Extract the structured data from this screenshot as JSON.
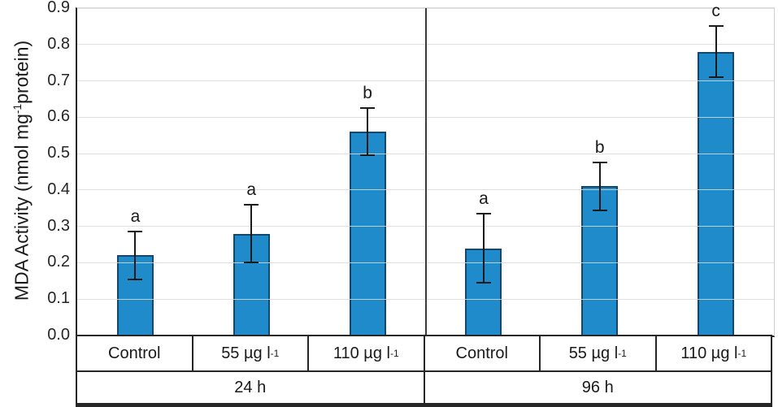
{
  "chart_data": {
    "type": "bar",
    "title": "",
    "y_axis": {
      "label_pre": "MDA Activity (nmol mg",
      "label_sup": "-1",
      "label_post": "protein)",
      "min": 0.0,
      "max": 0.9,
      "step": 0.1,
      "tick_labels": [
        "0.0",
        "0.1",
        "0.2",
        "0.3",
        "0.4",
        "0.5",
        "0.6",
        "0.7",
        "0.8",
        "0.9"
      ]
    },
    "grid": true,
    "legend": null,
    "groups": [
      {
        "label": "24 h",
        "bars": [
          {
            "category": "Control",
            "category_sup": "",
            "value": 0.22,
            "error": 0.065,
            "sig_letter": "a"
          },
          {
            "category": "55 µg l",
            "category_sup": "-1",
            "value": 0.28,
            "error": 0.08,
            "sig_letter": "a"
          },
          {
            "category": "110 µg l",
            "category_sup": "-1",
            "value": 0.56,
            "error": 0.065,
            "sig_letter": "b"
          }
        ]
      },
      {
        "label": "96 h",
        "bars": [
          {
            "category": "Control",
            "category_sup": "",
            "value": 0.24,
            "error": 0.095,
            "sig_letter": "a"
          },
          {
            "category": "55 µg l",
            "category_sup": "-1",
            "value": 0.41,
            "error": 0.065,
            "sig_letter": "b"
          },
          {
            "category": "110 µg l",
            "category_sup": "-1",
            "value": 0.78,
            "error": 0.07,
            "sig_letter": "c"
          }
        ]
      }
    ],
    "colors": {
      "bar_fill": "#1F8BCB",
      "bar_border": "#15476A",
      "gridline": "#D9D9D9",
      "axis": "#262626",
      "error_bar": "#1A1A1A",
      "text": "#1A1A1A"
    }
  }
}
